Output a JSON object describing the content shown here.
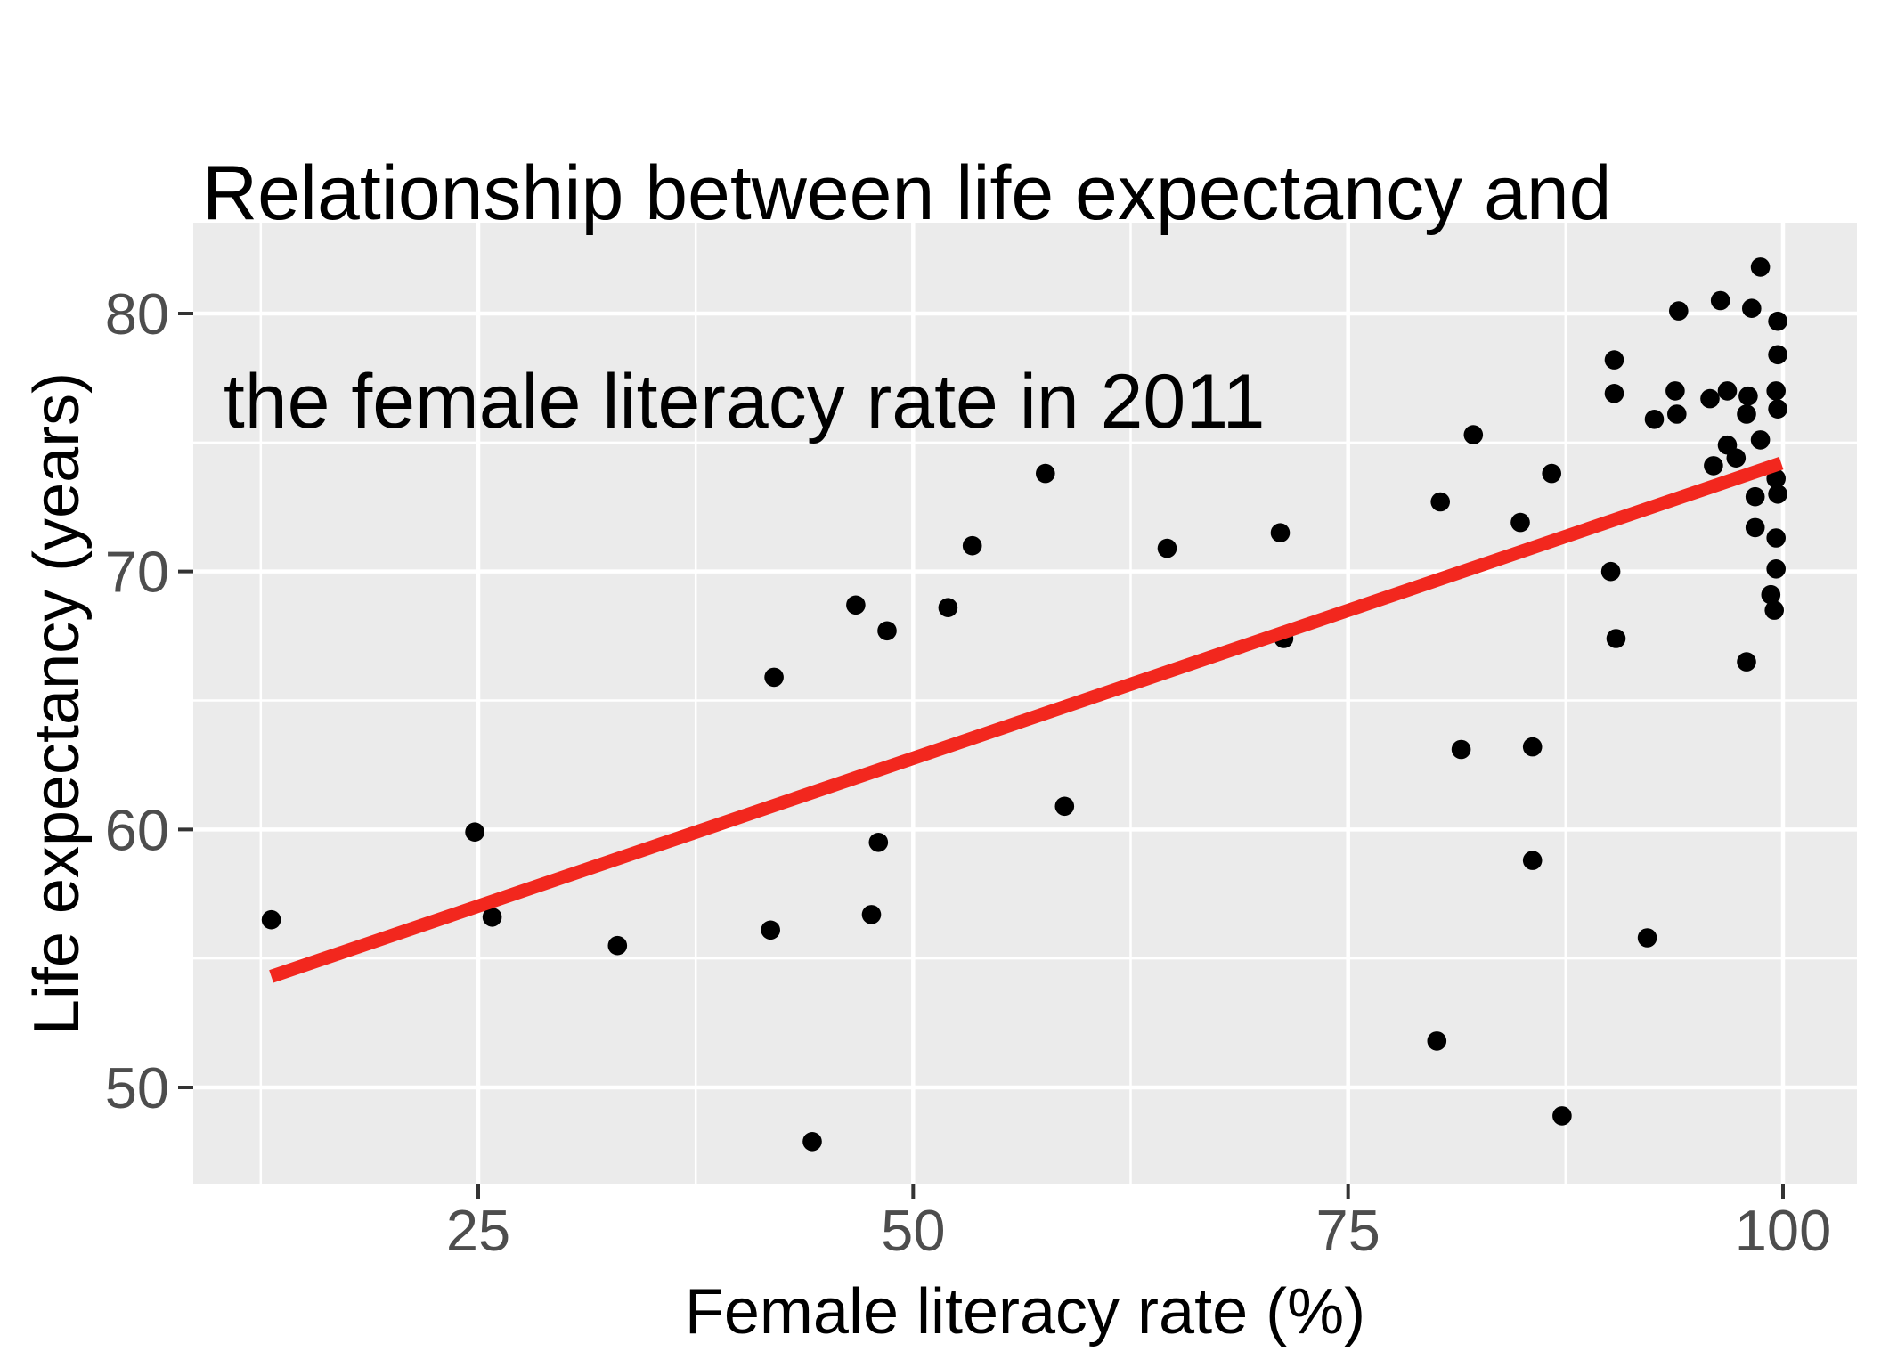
{
  "chart_data": {
    "type": "scatter",
    "title": "Relationship between life expectancy and\n the female literacy rate in 2011",
    "title_lines": [
      "Relationship between life expectancy and",
      " the female literacy rate in 2011"
    ],
    "xlabel": "Female literacy rate (%)",
    "ylabel": "Life expectancy (years)",
    "x_ticks": [
      25,
      50,
      75,
      100
    ],
    "y_ticks": [
      50,
      60,
      70,
      80
    ],
    "x_minor_ticks": [
      12.5,
      37.5,
      62.5,
      87.5
    ],
    "y_minor_ticks": [
      55,
      65,
      75
    ],
    "xlim": [
      8.6,
      104.3
    ],
    "ylim": [
      46.3,
      83.5
    ],
    "grid": "on",
    "legend": "none",
    "panel_background": "#EBEBEB",
    "gridline_color": "#FFFFFF",
    "point_color": "#000000",
    "tick_label_color": "#4D4D4D",
    "tick_mark_color": "#333333",
    "trend_line": {
      "color": "#F2271E",
      "x1": 13.1,
      "y1": 54.3,
      "x2": 99.9,
      "y2": 74.2
    },
    "points": [
      [
        13.1,
        56.5
      ],
      [
        24.8,
        59.9
      ],
      [
        25.8,
        56.6
      ],
      [
        33.0,
        55.5
      ],
      [
        41.8,
        56.1
      ],
      [
        42.0,
        65.9
      ],
      [
        44.2,
        47.9
      ],
      [
        46.7,
        68.7
      ],
      [
        47.6,
        56.7
      ],
      [
        48.0,
        59.5
      ],
      [
        48.5,
        67.7
      ],
      [
        52.0,
        68.6
      ],
      [
        53.4,
        71.0
      ],
      [
        57.6,
        73.8
      ],
      [
        58.7,
        60.9
      ],
      [
        64.6,
        70.9
      ],
      [
        71.1,
        71.5
      ],
      [
        71.3,
        67.4
      ],
      [
        80.1,
        51.8
      ],
      [
        80.3,
        72.7
      ],
      [
        81.5,
        63.1
      ],
      [
        82.2,
        75.3
      ],
      [
        84.9,
        71.9
      ],
      [
        85.6,
        63.2
      ],
      [
        85.6,
        58.8
      ],
      [
        86.7,
        73.8
      ],
      [
        87.3,
        48.9
      ],
      [
        90.1,
        70.0
      ],
      [
        90.3,
        78.2
      ],
      [
        90.3,
        76.9
      ],
      [
        90.4,
        67.4
      ],
      [
        92.2,
        55.8
      ],
      [
        92.6,
        75.9
      ],
      [
        93.8,
        77.0
      ],
      [
        93.9,
        76.1
      ],
      [
        94.0,
        80.1
      ],
      [
        95.8,
        76.7
      ],
      [
        96.0,
        74.1
      ],
      [
        96.4,
        80.5
      ],
      [
        96.8,
        77.0
      ],
      [
        96.8,
        74.9
      ],
      [
        97.3,
        74.4
      ],
      [
        97.9,
        76.1
      ],
      [
        97.9,
        66.5
      ],
      [
        98.0,
        76.8
      ],
      [
        98.2,
        80.2
      ],
      [
        98.4,
        72.9
      ],
      [
        98.4,
        71.7
      ],
      [
        98.7,
        81.8
      ],
      [
        98.7,
        75.1
      ],
      [
        99.3,
        69.1
      ],
      [
        99.5,
        68.5
      ],
      [
        99.6,
        77.0
      ],
      [
        99.6,
        70.1
      ],
      [
        99.6,
        71.3
      ],
      [
        99.6,
        73.6
      ],
      [
        99.7,
        73.0
      ],
      [
        99.7,
        76.3
      ],
      [
        99.7,
        78.4
      ],
      [
        99.7,
        79.7
      ]
    ]
  }
}
